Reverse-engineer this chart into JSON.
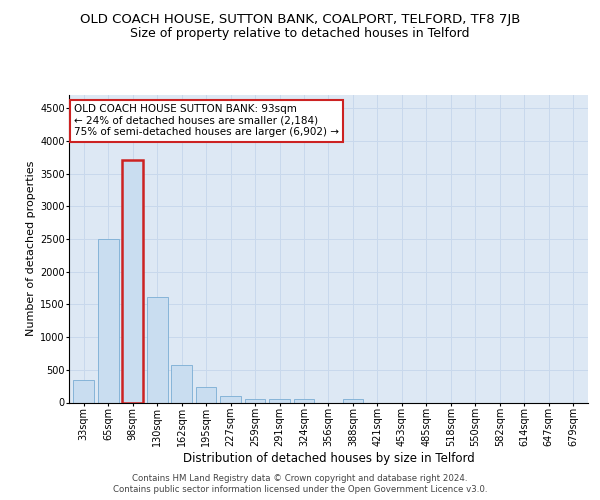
{
  "title": "OLD COACH HOUSE, SUTTON BANK, COALPORT, TELFORD, TF8 7JB",
  "subtitle": "Size of property relative to detached houses in Telford",
  "xlabel": "Distribution of detached houses by size in Telford",
  "ylabel": "Number of detached properties",
  "categories": [
    "33sqm",
    "65sqm",
    "98sqm",
    "130sqm",
    "162sqm",
    "195sqm",
    "227sqm",
    "259sqm",
    "291sqm",
    "324sqm",
    "356sqm",
    "388sqm",
    "421sqm",
    "453sqm",
    "485sqm",
    "518sqm",
    "550sqm",
    "582sqm",
    "614sqm",
    "647sqm",
    "679sqm"
  ],
  "values": [
    350,
    2500,
    3700,
    1620,
    580,
    230,
    100,
    60,
    50,
    50,
    0,
    55,
    0,
    0,
    0,
    0,
    0,
    0,
    0,
    0,
    0
  ],
  "highlight_index": 2,
  "bar_color": "#c9ddf0",
  "bar_edge_color": "#7aadd4",
  "highlight_bar_edge_color": "#cc2222",
  "annotation_box_text": "OLD COACH HOUSE SUTTON BANK: 93sqm\n← 24% of detached houses are smaller (2,184)\n75% of semi-detached houses are larger (6,902) →",
  "annotation_box_facecolor": "white",
  "annotation_box_edgecolor": "#cc2222",
  "ylim": [
    0,
    4700
  ],
  "yticks": [
    0,
    500,
    1000,
    1500,
    2000,
    2500,
    3000,
    3500,
    4000,
    4500
  ],
  "grid_color": "#c8d8ec",
  "background_color": "#dde8f4",
  "footer_line1": "Contains HM Land Registry data © Crown copyright and database right 2024.",
  "footer_line2": "Contains public sector information licensed under the Open Government Licence v3.0.",
  "title_fontsize": 9.5,
  "subtitle_fontsize": 9,
  "xlabel_fontsize": 8.5,
  "ylabel_fontsize": 8,
  "tick_fontsize": 7,
  "annotation_fontsize": 7.5
}
